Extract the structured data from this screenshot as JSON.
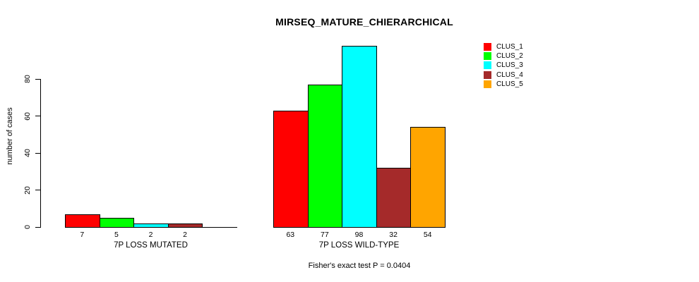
{
  "chart_data": {
    "type": "bar",
    "title": "MIRSEQ_MATURE_CHIERARCHICAL",
    "xlabel": "",
    "ylabel": "number of cases",
    "categories": [
      "7P LOSS MUTATED",
      "7P LOSS WILD-TYPE"
    ],
    "series": [
      {
        "name": "CLUS_1",
        "color": "#FF0000",
        "values": [
          7,
          63
        ]
      },
      {
        "name": "CLUS_2",
        "color": "#00FF00",
        "values": [
          5,
          77
        ]
      },
      {
        "name": "CLUS_3",
        "color": "#00FFFF",
        "values": [
          2,
          98
        ]
      },
      {
        "name": "CLUS_4",
        "color": "#A52A2A",
        "values": [
          2,
          32
        ]
      },
      {
        "name": "CLUS_5",
        "color": "#FFA500",
        "values": [
          0,
          54
        ]
      }
    ],
    "bar_value_labels": [
      [
        "7",
        "5",
        "2",
        "2",
        ""
      ],
      [
        "63",
        "77",
        "98",
        "32",
        "54"
      ]
    ],
    "yticks": [
      0,
      20,
      40,
      60,
      80
    ],
    "ylim": [
      0,
      105
    ],
    "grid": false,
    "legend_position": "top-right",
    "annotation": "Fisher's exact test P = 0.0404"
  },
  "colors": {
    "background": "#FFFFFF",
    "axis": "#000000",
    "text": "#000000"
  }
}
